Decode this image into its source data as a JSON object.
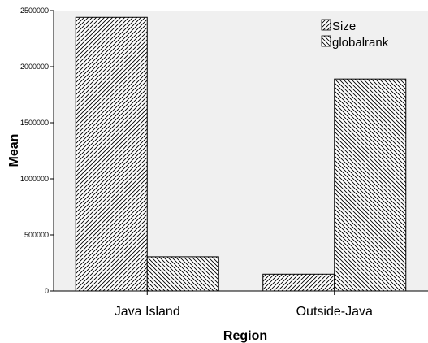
{
  "chart_data": {
    "type": "bar",
    "categories": [
      "Java Island",
      "Outside-Java"
    ],
    "series": [
      {
        "name": "Size",
        "values": [
          2440000,
          150000
        ],
        "pattern": "hatch-forward"
      },
      {
        "name": "globalrank",
        "values": [
          305000,
          1890000
        ],
        "pattern": "hatch-backward"
      }
    ],
    "xlabel": "Region",
    "ylabel": "Mean",
    "ylim": [
      0,
      2500000
    ],
    "yticks": [
      "0",
      "500000",
      "1000000",
      "1500000",
      "2000000",
      "2500000"
    ],
    "grid": false,
    "legend_position": "top-right",
    "colors": {
      "plot_background": "#f0f0f0",
      "bar_fill": "#ffffff",
      "hatch": "#000000"
    }
  }
}
